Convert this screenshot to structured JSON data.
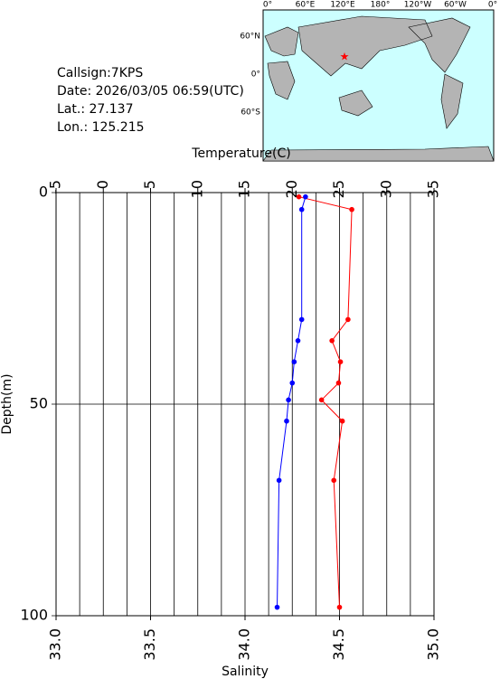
{
  "info": {
    "callsign": "Callsign:7KPS",
    "date": "Date:  2026/03/05 06:59(UTC)",
    "lat": "Lat.:  27.137",
    "lon": "Lon.:  125.215"
  },
  "map": {
    "top_labels": [
      "0°",
      "60°E",
      "120°E",
      "180°",
      "120°W",
      "60°W",
      "0°"
    ],
    "left_labels": [
      "60°N",
      "0°",
      "60°S"
    ]
  },
  "chart_data": {
    "type": "line",
    "ylabel": "Depth(m)",
    "ylim": [
      0,
      100
    ],
    "yticks": [
      0,
      50,
      100
    ],
    "depths": [
      1,
      4,
      30,
      35,
      40,
      45,
      49,
      54,
      68,
      98
    ],
    "series": [
      {
        "quantity": "temperature",
        "xlabel": "Temperature(C)",
        "color": "#ff0000",
        "xlim": [
          -5,
          35
        ],
        "xticks": [
          -5,
          0,
          5,
          10,
          15,
          20,
          25,
          30,
          35
        ],
        "grid": [
          -2.5,
          0,
          2.5,
          5,
          7.5,
          10,
          12.5,
          15,
          17.5,
          20,
          22.5,
          25,
          27.5,
          30,
          32.5
        ],
        "values": [
          20.7,
          26.3,
          25.9,
          24.2,
          25.1,
          24.9,
          23.1,
          25.3,
          24.4,
          25.0
        ]
      },
      {
        "quantity": "salinity",
        "xlabel": "Salinity",
        "color": "#0000ff",
        "xlim": [
          33,
          35
        ],
        "xticks": [
          {
            "value": 33,
            "label": "33.0"
          },
          {
            "value": 33.5,
            "label": "33.5"
          },
          {
            "value": 34,
            "label": "34.0"
          },
          {
            "value": 34.5,
            "label": "34.5"
          },
          {
            "value": 35,
            "label": "35.0"
          }
        ],
        "values": [
          34.32,
          34.3,
          34.3,
          34.28,
          34.26,
          34.25,
          34.23,
          34.22,
          34.18,
          34.17
        ]
      }
    ]
  }
}
